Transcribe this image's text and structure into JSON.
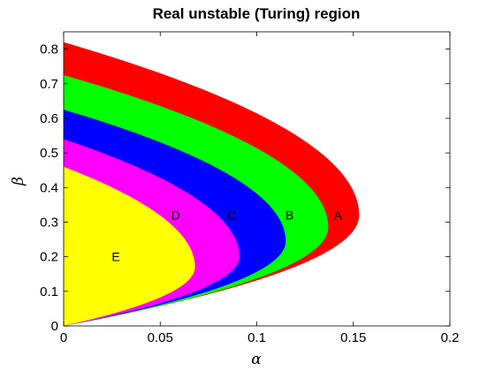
{
  "chart_data": {
    "type": "area",
    "title": "Real unstable (Turing) region",
    "xlabel": "α",
    "ylabel": "β",
    "xlim": [
      0,
      0.2
    ],
    "ylim": [
      0,
      0.85
    ],
    "x_ticks": [
      "0",
      "0.05",
      "0.1",
      "0.15",
      "0.2"
    ],
    "y_ticks": [
      "0",
      "0.1",
      "0.2",
      "0.3",
      "0.4",
      "0.5",
      "0.6",
      "0.7",
      "0.8"
    ],
    "grid": false,
    "legend": "none",
    "regions": [
      {
        "label": "A",
        "color": "#ff0000",
        "beta_top": 0.82,
        "alpha_max": 0.153,
        "beta_at_alpha_max": 0.32,
        "label_at": [
          0.142,
          0.32
        ]
      },
      {
        "label": "B",
        "color": "#00ff00",
        "beta_top": 0.725,
        "alpha_max": 0.137,
        "beta_at_alpha_max": 0.285,
        "label_at": [
          0.117,
          0.32
        ]
      },
      {
        "label": "C",
        "color": "#0000ff",
        "beta_top": 0.625,
        "alpha_max": 0.115,
        "beta_at_alpha_max": 0.245,
        "label_at": [
          0.087,
          0.32
        ]
      },
      {
        "label": "D",
        "color": "#ff00ff",
        "beta_top": 0.54,
        "alpha_max": 0.091,
        "beta_at_alpha_max": 0.2,
        "label_at": [
          0.058,
          0.32
        ]
      },
      {
        "label": "E",
        "color": "#ffff00",
        "beta_top": 0.46,
        "alpha_max": 0.068,
        "beta_at_alpha_max": 0.17,
        "label_at": [
          0.027,
          0.2
        ]
      }
    ]
  }
}
